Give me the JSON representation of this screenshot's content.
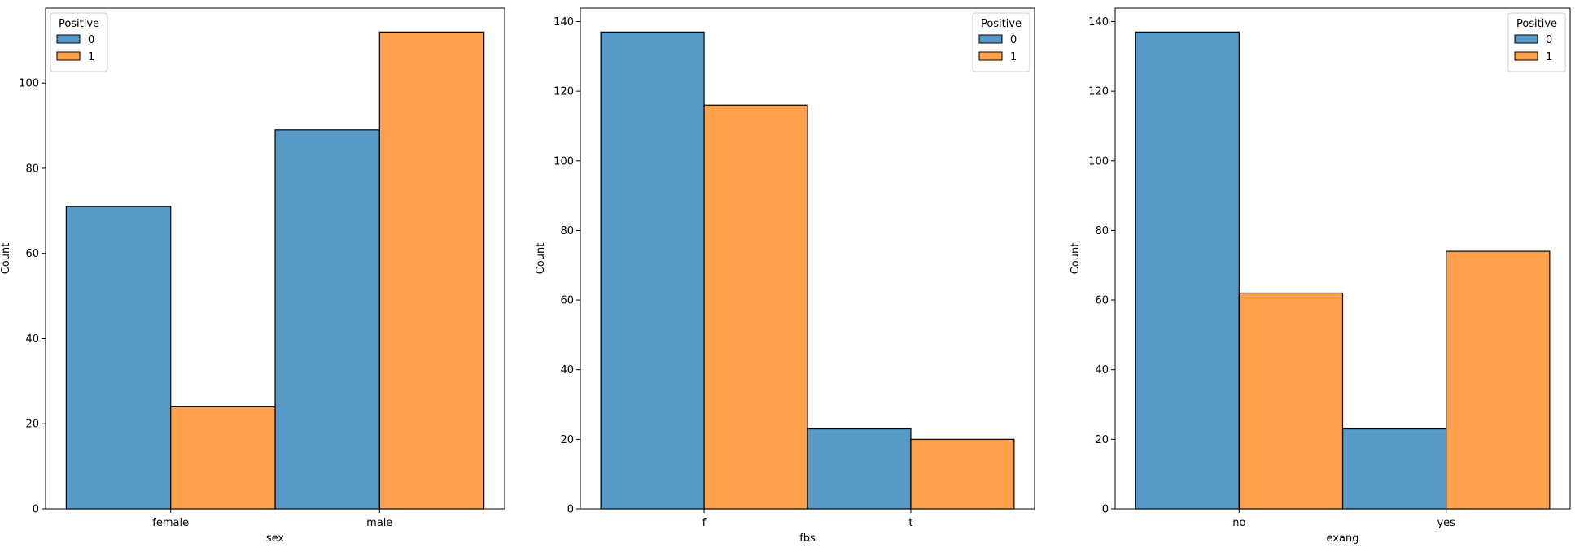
{
  "colors": {
    "series_0": "#5799c7",
    "series_1": "#ffa04c",
    "edge": "#000000",
    "background": "#ffffff"
  },
  "chart_data": [
    {
      "type": "bar",
      "title": "",
      "xlabel": "sex",
      "ylabel": "Count",
      "categories": [
        "female",
        "male"
      ],
      "legend_title": "Positive",
      "legend_position": "top-left",
      "ylim": [
        0,
        117.6
      ],
      "yticks": [
        0,
        20,
        40,
        60,
        80,
        100
      ],
      "series": [
        {
          "name": "0",
          "values": [
            71,
            89
          ]
        },
        {
          "name": "1",
          "values": [
            24,
            112
          ]
        }
      ]
    },
    {
      "type": "bar",
      "title": "",
      "xlabel": "fbs",
      "ylabel": "Count",
      "categories": [
        "f",
        "t"
      ],
      "legend_title": "Positive",
      "legend_position": "top-right",
      "ylim": [
        0,
        143.85
      ],
      "yticks": [
        0,
        20,
        40,
        60,
        80,
        100,
        120,
        140
      ],
      "series": [
        {
          "name": "0",
          "values": [
            137,
            23
          ]
        },
        {
          "name": "1",
          "values": [
            116,
            20
          ]
        }
      ]
    },
    {
      "type": "bar",
      "title": "",
      "xlabel": "exang",
      "ylabel": "Count",
      "categories": [
        "no",
        "yes"
      ],
      "legend_title": "Positive",
      "legend_position": "top-right",
      "ylim": [
        0,
        143.85
      ],
      "yticks": [
        0,
        20,
        40,
        60,
        80,
        100,
        120,
        140
      ],
      "series": [
        {
          "name": "0",
          "values": [
            137,
            23
          ]
        },
        {
          "name": "1",
          "values": [
            62,
            74
          ]
        }
      ]
    }
  ]
}
